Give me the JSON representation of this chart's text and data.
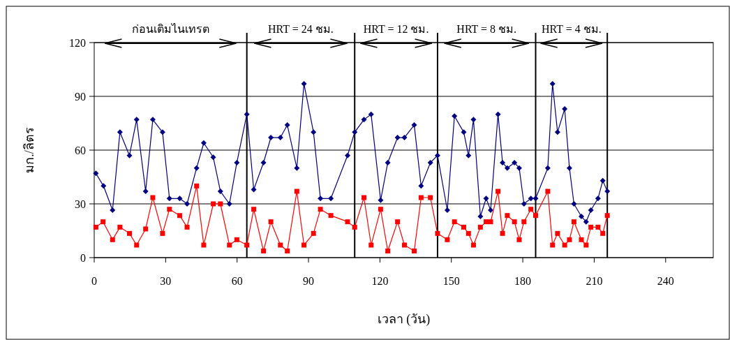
{
  "chart_data": {
    "type": "line",
    "xlabel": "เวลา (วัน)",
    "ylabel": "มก./ลิตร",
    "xlim": [
      0,
      260
    ],
    "xticks": [
      0,
      30,
      60,
      90,
      120,
      150,
      180,
      210,
      240
    ],
    "ylim": [
      0,
      120
    ],
    "yticks": [
      0,
      30,
      60,
      90,
      120
    ],
    "grid": "y",
    "line_style": "solid",
    "series": [
      {
        "color": "#000080",
        "marker": "diamond",
        "x": [
          0.7,
          3.9,
          7.7,
          10.8,
          14.8,
          17.8,
          21.6,
          24.6,
          28.7,
          31.6,
          35.9,
          39,
          43,
          46,
          50,
          53,
          56.8,
          59.9,
          64.1,
          67,
          71.1,
          74.2,
          78.2,
          81.1,
          85.1,
          88.1,
          92.1,
          95,
          99.4,
          106.4,
          109.4,
          113.3,
          116.3,
          120.3,
          123.3,
          127.4,
          130.3,
          134.4,
          137.3,
          141.2,
          144.2,
          148.3,
          151.3,
          155.2,
          157.2,
          159.3,
          162.2,
          164.6,
          166.5,
          169.6,
          171.5,
          173.5,
          176.5,
          178.5,
          180.5,
          183.4,
          185.4,
          190.5,
          192.5,
          194.6,
          197.6,
          199.6,
          201.5,
          204.6,
          206.6,
          208.6,
          211.6,
          213.6,
          215.5
        ],
        "values": [
          47,
          40,
          26.5,
          70,
          57,
          77,
          37,
          77,
          70,
          33,
          33,
          30,
          50,
          64,
          56,
          37,
          30,
          53,
          80,
          38,
          53,
          67,
          67,
          74,
          50,
          97,
          70,
          33,
          33,
          57,
          70,
          77,
          80,
          32,
          53,
          67,
          67,
          74,
          40,
          53,
          57,
          26.5,
          79,
          70,
          57,
          77,
          23,
          33,
          26.5,
          80,
          53,
          50,
          53,
          50,
          30,
          33,
          33,
          50,
          97,
          70,
          83,
          50,
          30,
          23,
          20,
          26.5,
          33,
          43,
          37
        ]
      },
      {
        "color": "#ff0000",
        "marker": "square",
        "x": [
          0.7,
          3.7,
          7.7,
          10.8,
          14.8,
          17.8,
          21.6,
          24.6,
          28.7,
          31.6,
          35.9,
          39,
          43,
          46,
          50,
          53,
          56.8,
          59.9,
          64.1,
          67,
          71.1,
          74.2,
          78.2,
          81.1,
          85.1,
          88.1,
          92.1,
          95,
          99.4,
          106.4,
          109.4,
          113.3,
          116.3,
          120.3,
          123.3,
          127.4,
          130.3,
          134.4,
          137.3,
          141.2,
          144.2,
          148.3,
          151.3,
          155.2,
          157.2,
          159.3,
          162.2,
          164.6,
          166.5,
          169.6,
          171.5,
          173.5,
          176.5,
          178.5,
          180.5,
          183.4,
          185.4,
          190.5,
          192.5,
          194.6,
          197.6,
          199.6,
          201.5,
          204.6,
          206.6,
          208.6,
          211.6,
          213.6,
          215.5
        ],
        "values": [
          17,
          20,
          10,
          17,
          13.5,
          7,
          16,
          33.5,
          13.5,
          27,
          23.5,
          17,
          40,
          7,
          30,
          30,
          7,
          10,
          7,
          27,
          3.7,
          20,
          7,
          3.7,
          37,
          7,
          13.5,
          27,
          23.5,
          20,
          17,
          33.5,
          7,
          27,
          3.7,
          20,
          7,
          3.7,
          33.5,
          33.5,
          13.5,
          10,
          20,
          17,
          13.5,
          7,
          17,
          20,
          20,
          37,
          13.5,
          23.5,
          20,
          10,
          20,
          27,
          23.5,
          37,
          7,
          13.5,
          7,
          10,
          20,
          10,
          7,
          17,
          17,
          13.5,
          23.5
        ]
      }
    ],
    "ref_lines": [
      {
        "axis": "x",
        "value": 64.1,
        "color": "#000000"
      },
      {
        "axis": "x",
        "value": 109.4,
        "color": "#000000"
      },
      {
        "axis": "x",
        "value": 144.2,
        "color": "#000000"
      },
      {
        "axis": "x",
        "value": 185.4,
        "color": "#000000"
      },
      {
        "axis": "x",
        "value": 215.5,
        "color": "#000000"
      }
    ],
    "annotations": [
      "ก่อนเติมไนเทรต",
      "HRT = 24 ชม.",
      "HRT = 12 ชม.",
      "HRT = 8 ชม.",
      "HRT = 4 ชม."
    ]
  }
}
